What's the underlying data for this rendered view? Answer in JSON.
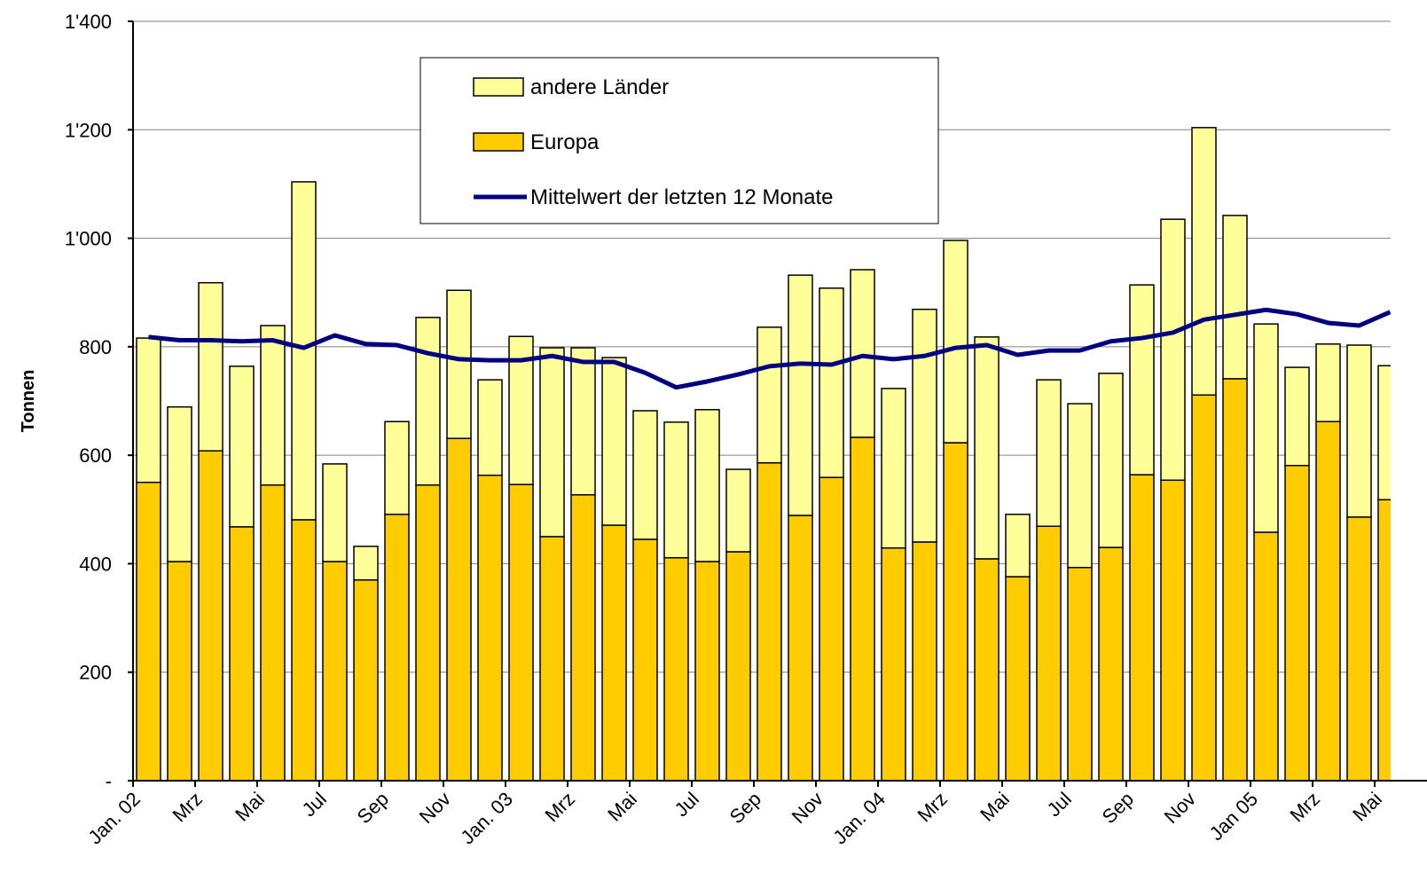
{
  "chart_data": {
    "type": "stacked-bar-line",
    "y_label": "Tonnen",
    "categories": [
      "Jan. 02",
      null,
      "Mrz",
      null,
      "Mai",
      null,
      "Jul",
      null,
      "Sep",
      null,
      "Nov",
      null,
      "Jan. 03",
      null,
      "Mrz",
      null,
      "Mai",
      null,
      "Jul",
      null,
      "Sep",
      null,
      "Nov",
      null,
      "Jan. 04",
      null,
      "Mrz",
      null,
      "Mai",
      null,
      "Jul",
      null,
      "Sep",
      null,
      "Nov",
      null,
      "Jan 05",
      null,
      "Mrz",
      null,
      "Mai"
    ],
    "series": [
      {
        "name": "Europa",
        "type": "bar",
        "color": "#ffcc00",
        "values": [
          550,
          404,
          608,
          468,
          545,
          481,
          404,
          370,
          491,
          545,
          631,
          563,
          546,
          450,
          527,
          471,
          445,
          411,
          404,
          422,
          586,
          489,
          559,
          633,
          429,
          440,
          623,
          409,
          376,
          469,
          393,
          430,
          564,
          554,
          711,
          741,
          458,
          581,
          662,
          486,
          518
        ]
      },
      {
        "name": "andere Länder",
        "type": "bar",
        "color": "#ffff99",
        "values": [
          266,
          285,
          310,
          296,
          294,
          623,
          180,
          62,
          171,
          309,
          273,
          176,
          273,
          348,
          271,
          309,
          237,
          250,
          280,
          152,
          250,
          443,
          349,
          309,
          294,
          429,
          373,
          409,
          115,
          270,
          302,
          321,
          350,
          481,
          493,
          301,
          384,
          181,
          143,
          317,
          247
        ]
      },
      {
        "name": "Mittelwert der letzten 12 Monate",
        "type": "line",
        "color": "#000080",
        "values": [
          818,
          812,
          812,
          810,
          812,
          798,
          821,
          805,
          803,
          788,
          777,
          775,
          775,
          783,
          772,
          772,
          752,
          725,
          736,
          749,
          764,
          769,
          767,
          783,
          777,
          783,
          798,
          803,
          785,
          793,
          793,
          810,
          816,
          826,
          850,
          859,
          868,
          860,
          844,
          839,
          864
        ]
      }
    ],
    "ylim": [
      0,
      1400
    ],
    "yticks": [
      {
        "value": 0,
        "label": "-"
      },
      200,
      400,
      600,
      800,
      {
        "value": 1000,
        "label": "1'000"
      },
      {
        "value": 1200,
        "label": "1'200"
      },
      {
        "value": 1400,
        "label": "1'400"
      }
    ],
    "grid": true
  }
}
